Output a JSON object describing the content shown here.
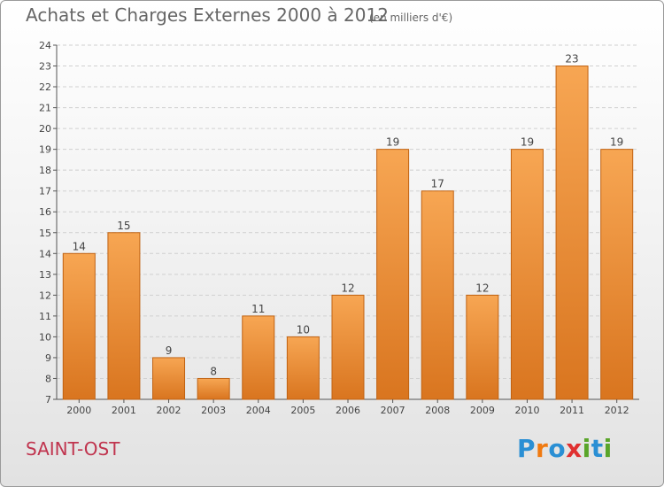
{
  "title": "Achats et Charges Externes 2000 à 2012",
  "subtitle": "(en milliers d'€)",
  "place": "SAINT-OST",
  "logo": {
    "letters": [
      "P",
      "r",
      "o",
      "x",
      "i",
      "t",
      "i"
    ],
    "colors": [
      "#2a8fd4",
      "#f07a10",
      "#2a8fd4",
      "#e03030",
      "#5aa52a",
      "#2a8fd4",
      "#5aa52a"
    ]
  },
  "colors": {
    "bar_top": "#f7a653",
    "bar_bottom": "#d9751f",
    "bar_edge": "#c06212"
  },
  "chart_data": {
    "type": "bar",
    "title": "Achats et Charges Externes 2000 à 2012",
    "categories": [
      "2000",
      "2001",
      "2002",
      "2003",
      "2004",
      "2005",
      "2006",
      "2007",
      "2008",
      "2009",
      "2010",
      "2011",
      "2012"
    ],
    "values": [
      14,
      15,
      9,
      8,
      11,
      10,
      12,
      19,
      17,
      12,
      19,
      23,
      19
    ],
    "ylim": [
      7,
      24
    ],
    "yticks": [
      7,
      8,
      9,
      10,
      11,
      12,
      13,
      14,
      15,
      16,
      17,
      18,
      19,
      20,
      21,
      22,
      23,
      24
    ],
    "grid": true
  }
}
